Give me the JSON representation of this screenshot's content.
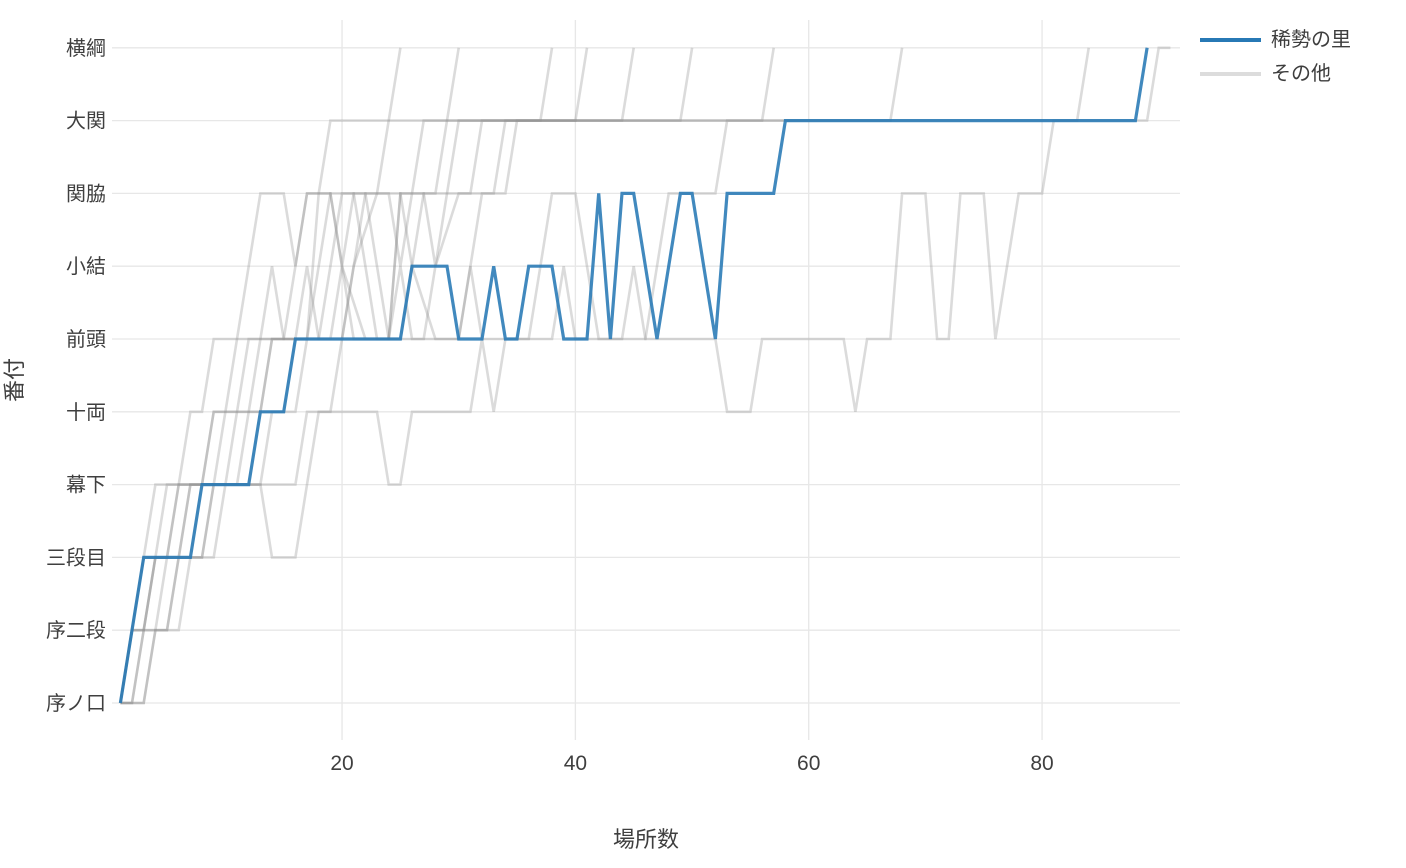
{
  "chart_data": {
    "type": "line",
    "title": "",
    "xlabel": "場所数",
    "ylabel": "番付",
    "x_ticks": [
      20,
      40,
      60,
      80
    ],
    "xlim": [
      1,
      91.5
    ],
    "grid": true,
    "legend_position": "top-right",
    "y_categories": [
      "序ノ口",
      "序二段",
      "三段目",
      "幕下",
      "十両",
      "前頭",
      "小結",
      "関脇",
      "大関",
      "横綱"
    ],
    "legend": [
      {
        "label": "稀勢の里",
        "color": "#2779b5"
      },
      {
        "label": "その他",
        "color": "#dcdcdc"
      }
    ],
    "series": [
      {
        "name": "稀勢の里",
        "color": "#2779b5",
        "opacity": 0.88,
        "width": 3.2,
        "points": [
          [
            1,
            1
          ],
          [
            2,
            2
          ],
          [
            3,
            3
          ],
          [
            7,
            3
          ],
          [
            8,
            4
          ],
          [
            12,
            4
          ],
          [
            13,
            5
          ],
          [
            15,
            5
          ],
          [
            16,
            6
          ],
          [
            25,
            6
          ],
          [
            26,
            7
          ],
          [
            29,
            7
          ],
          [
            30,
            6
          ],
          [
            32,
            6
          ],
          [
            33,
            7
          ],
          [
            34,
            6
          ],
          [
            35,
            6
          ],
          [
            36,
            7
          ],
          [
            38,
            7
          ],
          [
            39,
            6
          ],
          [
            41,
            6
          ],
          [
            42,
            8
          ],
          [
            43,
            6
          ],
          [
            44,
            8
          ],
          [
            45,
            8
          ],
          [
            46,
            7
          ],
          [
            47,
            6
          ],
          [
            48,
            7
          ],
          [
            49,
            8
          ],
          [
            50,
            8
          ],
          [
            51,
            7
          ],
          [
            52,
            6
          ],
          [
            53,
            8
          ],
          [
            57,
            8
          ],
          [
            58,
            9
          ],
          [
            88,
            9
          ],
          [
            89,
            10
          ]
        ]
      },
      {
        "name": "その他",
        "color": "#8f8f8f",
        "opacity": 0.32,
        "width": 2.6,
        "lines": [
          [
            [
              1,
              1
            ],
            [
              2,
              2
            ],
            [
              3,
              3
            ],
            [
              4,
              4
            ],
            [
              6,
              4
            ],
            [
              7,
              5
            ],
            [
              8,
              5
            ],
            [
              9,
              6
            ],
            [
              11,
              6
            ],
            [
              12,
              7
            ],
            [
              13,
              8
            ],
            [
              15,
              8
            ],
            [
              16,
              7
            ],
            [
              17,
              8
            ],
            [
              18,
              8
            ],
            [
              19,
              9
            ],
            [
              24,
              9
            ],
            [
              25,
              10
            ]
          ],
          [
            [
              1,
              1
            ],
            [
              2,
              1
            ],
            [
              3,
              2
            ],
            [
              4,
              3
            ],
            [
              5,
              3
            ],
            [
              6,
              4
            ],
            [
              8,
              4
            ],
            [
              9,
              5
            ],
            [
              10,
              5
            ],
            [
              11,
              6
            ],
            [
              13,
              6
            ],
            [
              14,
              7
            ],
            [
              15,
              6
            ],
            [
              17,
              6
            ],
            [
              18,
              8
            ],
            [
              19,
              8
            ],
            [
              20,
              7
            ],
            [
              21,
              8
            ],
            [
              23,
              8
            ],
            [
              24,
              9
            ],
            [
              29,
              9
            ],
            [
              30,
              10
            ]
          ],
          [
            [
              1,
              1
            ],
            [
              2,
              2
            ],
            [
              4,
              2
            ],
            [
              5,
              3
            ],
            [
              7,
              3
            ],
            [
              8,
              4
            ],
            [
              11,
              4
            ],
            [
              12,
              5
            ],
            [
              13,
              5
            ],
            [
              14,
              6
            ],
            [
              16,
              6
            ],
            [
              17,
              7
            ],
            [
              18,
              6
            ],
            [
              20,
              6
            ],
            [
              21,
              7
            ],
            [
              22,
              8
            ],
            [
              24,
              8
            ],
            [
              25,
              7
            ],
            [
              26,
              8
            ],
            [
              28,
              8
            ],
            [
              29,
              9
            ],
            [
              37,
              9
            ],
            [
              38,
              10
            ]
          ],
          [
            [
              1,
              1
            ],
            [
              3,
              1
            ],
            [
              4,
              2
            ],
            [
              5,
              2
            ],
            [
              6,
              3
            ],
            [
              8,
              3
            ],
            [
              9,
              4
            ],
            [
              12,
              4
            ],
            [
              13,
              5
            ],
            [
              15,
              5
            ],
            [
              16,
              6
            ],
            [
              19,
              6
            ],
            [
              20,
              7
            ],
            [
              22,
              6
            ],
            [
              24,
              6
            ],
            [
              25,
              8
            ],
            [
              27,
              8
            ],
            [
              28,
              7
            ],
            [
              29,
              8
            ],
            [
              31,
              8
            ],
            [
              32,
              9
            ],
            [
              40,
              9
            ],
            [
              41,
              10
            ]
          ],
          [
            [
              1,
              1
            ],
            [
              2,
              2
            ],
            [
              3,
              2
            ],
            [
              4,
              3
            ],
            [
              6,
              3
            ],
            [
              7,
              4
            ],
            [
              10,
              4
            ],
            [
              11,
              5
            ],
            [
              13,
              5
            ],
            [
              14,
              6
            ],
            [
              17,
              6
            ],
            [
              18,
              7
            ],
            [
              19,
              8
            ],
            [
              21,
              8
            ],
            [
              22,
              7
            ],
            [
              23,
              6
            ],
            [
              25,
              6
            ],
            [
              26,
              7
            ],
            [
              27,
              8
            ],
            [
              29,
              8
            ],
            [
              30,
              9
            ],
            [
              44,
              9
            ],
            [
              45,
              10
            ]
          ],
          [
            [
              1,
              1
            ],
            [
              2,
              1
            ],
            [
              3,
              2
            ],
            [
              5,
              2
            ],
            [
              6,
              3
            ],
            [
              8,
              3
            ],
            [
              9,
              4
            ],
            [
              13,
              4
            ],
            [
              14,
              5
            ],
            [
              16,
              5
            ],
            [
              17,
              6
            ],
            [
              20,
              6
            ],
            [
              21,
              7
            ],
            [
              23,
              8
            ],
            [
              25,
              8
            ],
            [
              26,
              7
            ],
            [
              28,
              6
            ],
            [
              30,
              6
            ],
            [
              31,
              7
            ],
            [
              32,
              8
            ],
            [
              34,
              8
            ],
            [
              35,
              9
            ],
            [
              49,
              9
            ],
            [
              50,
              10
            ]
          ],
          [
            [
              1,
              1
            ],
            [
              2,
              2
            ],
            [
              3,
              3
            ],
            [
              5,
              3
            ],
            [
              6,
              4
            ],
            [
              9,
              4
            ],
            [
              10,
              5
            ],
            [
              12,
              5
            ],
            [
              13,
              6
            ],
            [
              18,
              6
            ],
            [
              19,
              7
            ],
            [
              20,
              8
            ],
            [
              22,
              8
            ],
            [
              23,
              7
            ],
            [
              24,
              6
            ],
            [
              27,
              6
            ],
            [
              28,
              7
            ],
            [
              30,
              8
            ],
            [
              33,
              8
            ],
            [
              34,
              9
            ],
            [
              56,
              9
            ],
            [
              57,
              10
            ]
          ],
          [
            [
              1,
              1
            ],
            [
              2,
              2
            ],
            [
              3,
              2
            ],
            [
              4,
              3
            ],
            [
              6,
              3
            ],
            [
              7,
              4
            ],
            [
              16,
              4
            ],
            [
              17,
              5
            ],
            [
              19,
              5
            ],
            [
              20,
              6
            ],
            [
              24,
              6
            ],
            [
              25,
              7
            ],
            [
              26,
              6
            ],
            [
              30,
              6
            ],
            [
              31,
              7
            ],
            [
              32,
              6
            ],
            [
              36,
              6
            ],
            [
              37,
              7
            ],
            [
              38,
              8
            ],
            [
              40,
              8
            ],
            [
              41,
              7
            ],
            [
              42,
              6
            ],
            [
              46,
              6
            ],
            [
              47,
              7
            ],
            [
              48,
              8
            ],
            [
              52,
              8
            ],
            [
              53,
              9
            ],
            [
              67,
              9
            ],
            [
              68,
              10
            ]
          ],
          [
            [
              1,
              1
            ],
            [
              3,
              1
            ],
            [
              4,
              2
            ],
            [
              6,
              2
            ],
            [
              7,
              3
            ],
            [
              9,
              3
            ],
            [
              10,
              4
            ],
            [
              13,
              4
            ],
            [
              14,
              3
            ],
            [
              16,
              3
            ],
            [
              17,
              4
            ],
            [
              18,
              5
            ],
            [
              23,
              5
            ],
            [
              24,
              4
            ],
            [
              25,
              4
            ],
            [
              26,
              5
            ],
            [
              31,
              5
            ],
            [
              32,
              6
            ],
            [
              33,
              5
            ],
            [
              34,
              6
            ],
            [
              38,
              6
            ],
            [
              39,
              7
            ],
            [
              40,
              6
            ],
            [
              44,
              6
            ],
            [
              45,
              7
            ],
            [
              46,
              6
            ],
            [
              52,
              6
            ],
            [
              53,
              5
            ],
            [
              55,
              5
            ],
            [
              56,
              6
            ],
            [
              63,
              6
            ],
            [
              64,
              5
            ],
            [
              65,
              6
            ],
            [
              67,
              6
            ],
            [
              68,
              8
            ],
            [
              70,
              8
            ],
            [
              71,
              6
            ],
            [
              72,
              6
            ],
            [
              73,
              8
            ],
            [
              75,
              8
            ],
            [
              76,
              6
            ],
            [
              78,
              8
            ],
            [
              80,
              8
            ],
            [
              81,
              9
            ],
            [
              83,
              9
            ],
            [
              84,
              10
            ]
          ],
          [
            [
              1,
              1
            ],
            [
              2,
              2
            ],
            [
              3,
              3
            ],
            [
              4,
              3
            ],
            [
              5,
              4
            ],
            [
              8,
              4
            ],
            [
              9,
              5
            ],
            [
              11,
              5
            ],
            [
              12,
              6
            ],
            [
              15,
              6
            ],
            [
              16,
              7
            ],
            [
              17,
              8
            ],
            [
              19,
              8
            ],
            [
              20,
              7
            ],
            [
              21,
              6
            ],
            [
              24,
              6
            ],
            [
              25,
              8
            ],
            [
              26,
              8
            ],
            [
              27,
              9
            ],
            [
              89,
              9
            ],
            [
              90,
              10
            ],
            [
              91,
              10
            ]
          ]
        ]
      }
    ],
    "style": {
      "grid_color": "#e7e7e7",
      "tick_text_color": "#3f3f3f",
      "background": "#ffffff"
    }
  }
}
